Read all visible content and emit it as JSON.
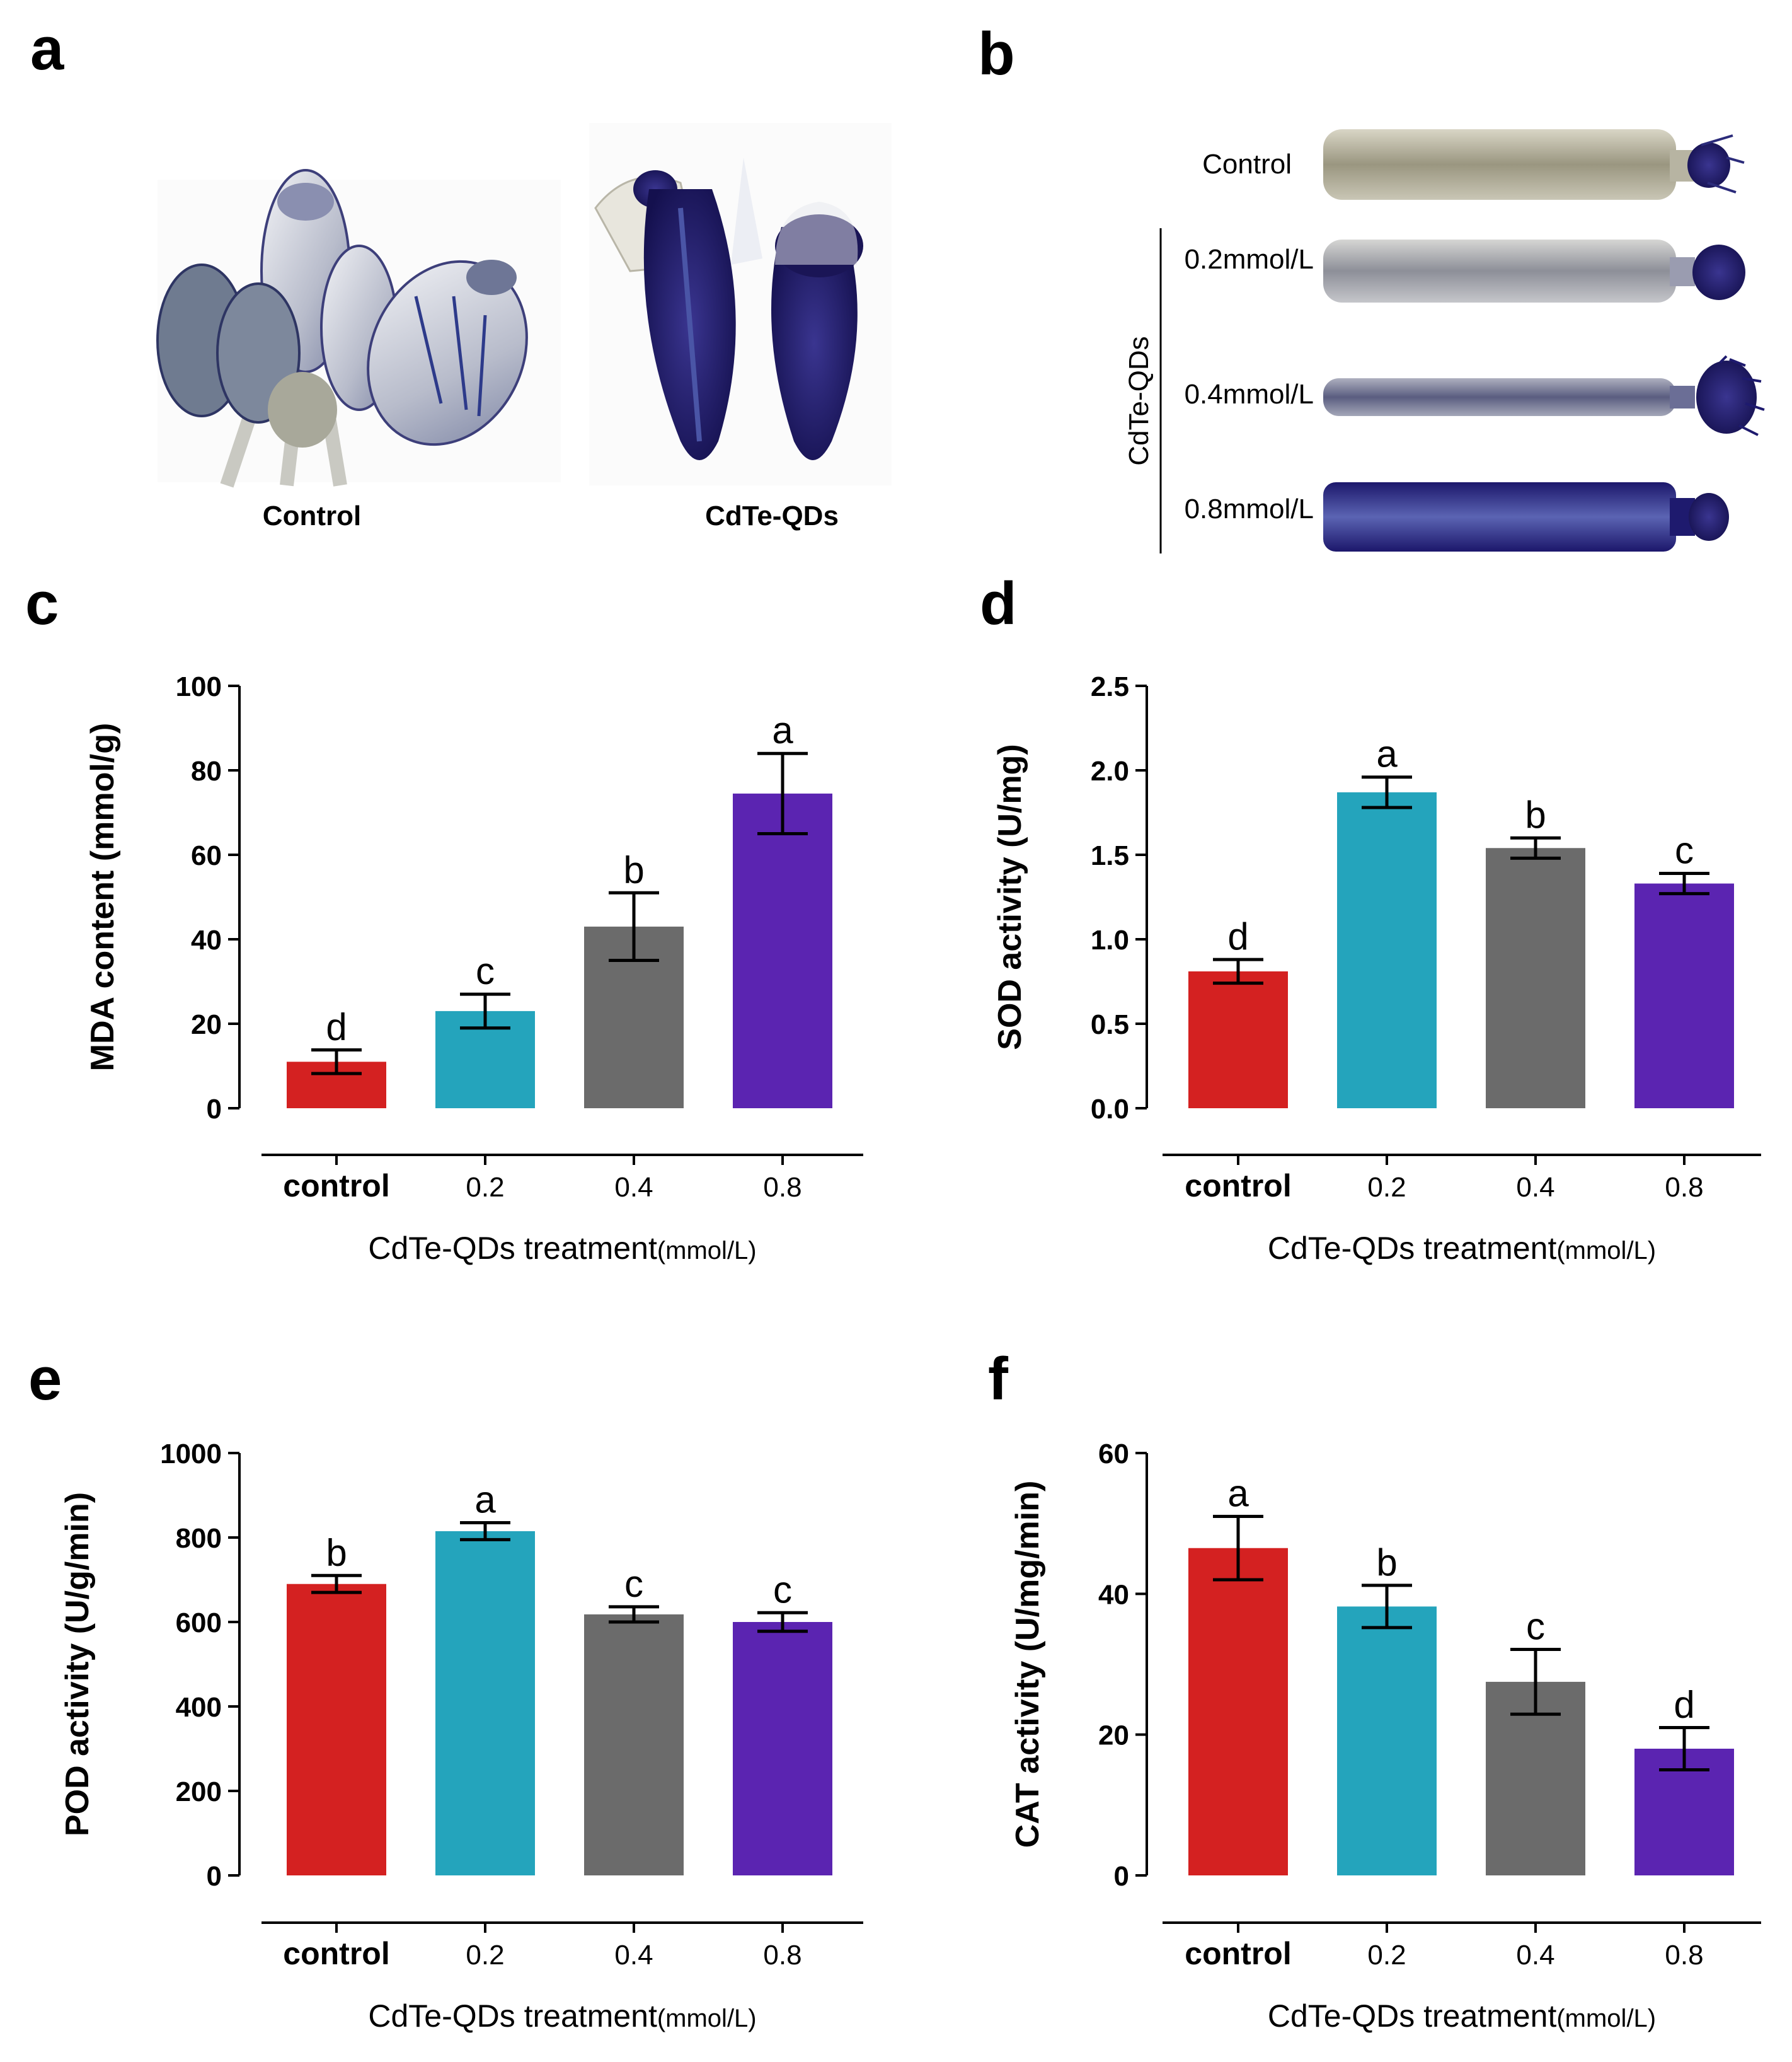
{
  "panel_labels": {
    "a": "a",
    "b": "b",
    "c": "c",
    "d": "d",
    "e": "e",
    "f": "f"
  },
  "panel_a": {
    "left_caption": "Control",
    "right_caption": "CdTe-QDs"
  },
  "panel_b": {
    "group_label": "CdTe-QDs",
    "rows": [
      {
        "label": "Control"
      },
      {
        "label": "0.2mmol/L"
      },
      {
        "label": "0.4mmol/L"
      },
      {
        "label": "0.8mmol/L"
      }
    ]
  },
  "colors": {
    "control": "#d42121",
    "c02": "#24a4bc",
    "c04": "#6b6b6b",
    "c08": "#5b24b1",
    "stain": "#1e1a6e"
  },
  "x_tick_labels": [
    "control",
    "0.2",
    "0.4",
    "0.8"
  ],
  "x_axis_title": {
    "main": "CdTe-QDs treatment",
    "unit": "(mmol/L)"
  },
  "chart_data": [
    {
      "id": "c",
      "type": "bar",
      "ylabel": "MDA content (mmol/g)",
      "categories": [
        "control",
        "0.2",
        "0.4",
        "0.8"
      ],
      "values": [
        11,
        23,
        43,
        74.5
      ],
      "errors": [
        2.8,
        4,
        8,
        9.5
      ],
      "letters": [
        "d",
        "c",
        "b",
        "a"
      ],
      "ylim": [
        0,
        100
      ],
      "yticks": [
        "0",
        "20",
        "40",
        "60",
        "80",
        "100"
      ]
    },
    {
      "id": "d",
      "type": "bar",
      "ylabel": "SOD activity (U/mg)",
      "categories": [
        "control",
        "0.2",
        "0.4",
        "0.8"
      ],
      "values": [
        0.81,
        1.87,
        1.54,
        1.33
      ],
      "errors": [
        0.07,
        0.09,
        0.06,
        0.06
      ],
      "letters": [
        "d",
        "a",
        "b",
        "c"
      ],
      "ylim": [
        0,
        2.5
      ],
      "yticks": [
        "0.0",
        "0.5",
        "1.0",
        "1.5",
        "2.0",
        "2.5"
      ]
    },
    {
      "id": "e",
      "type": "bar",
      "ylabel": "POD activity (U/g/min)",
      "categories": [
        "control",
        "0.2",
        "0.4",
        "0.8"
      ],
      "values": [
        690,
        815,
        618,
        600
      ],
      "errors": [
        20,
        20,
        18,
        22
      ],
      "letters": [
        "b",
        "a",
        "c",
        "c"
      ],
      "ylim": [
        0,
        1000
      ],
      "yticks": [
        "0",
        "200",
        "400",
        "600",
        "800",
        "1000"
      ]
    },
    {
      "id": "f",
      "type": "bar",
      "ylabel": "CAT activity (U/mg/min)",
      "categories": [
        "control",
        "0.2",
        "0.4",
        "0.8"
      ],
      "values": [
        46.5,
        38.2,
        27.5,
        18
      ],
      "errors": [
        4.5,
        3,
        4.6,
        3
      ],
      "letters": [
        "a",
        "b",
        "c",
        "d"
      ],
      "ylim": [
        0,
        60
      ],
      "yticks": [
        "0",
        "20",
        "40",
        "60"
      ]
    }
  ]
}
